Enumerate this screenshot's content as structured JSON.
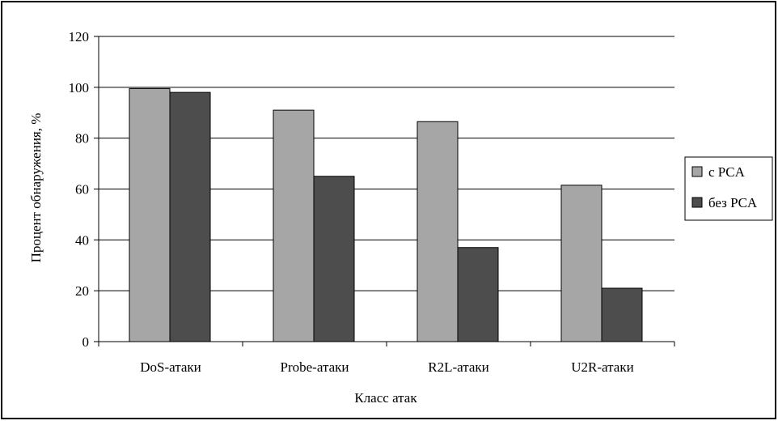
{
  "chart_data": {
    "type": "bar",
    "title": "",
    "xlabel": "Класс атак",
    "ylabel": "Процент обнаружения, %",
    "categories": [
      "DoS-атаки",
      "Probe-атаки",
      "R2L-атаки",
      "U2R-атаки"
    ],
    "series": [
      {
        "name": "с PCA",
        "values": [
          99.5,
          91,
          86.5,
          61.5
        ]
      },
      {
        "name": "без PCA",
        "values": [
          98,
          65,
          37,
          21
        ]
      }
    ],
    "ylim": [
      0,
      120
    ],
    "yticks": [
      0,
      20,
      40,
      60,
      80,
      100,
      120
    ],
    "grid": true,
    "legend_position": "right",
    "colors": {
      "series": [
        "#a6a6a6",
        "#4d4d4d"
      ],
      "grid": "#000000",
      "frame": "#000000",
      "background": "#ffffff"
    }
  }
}
